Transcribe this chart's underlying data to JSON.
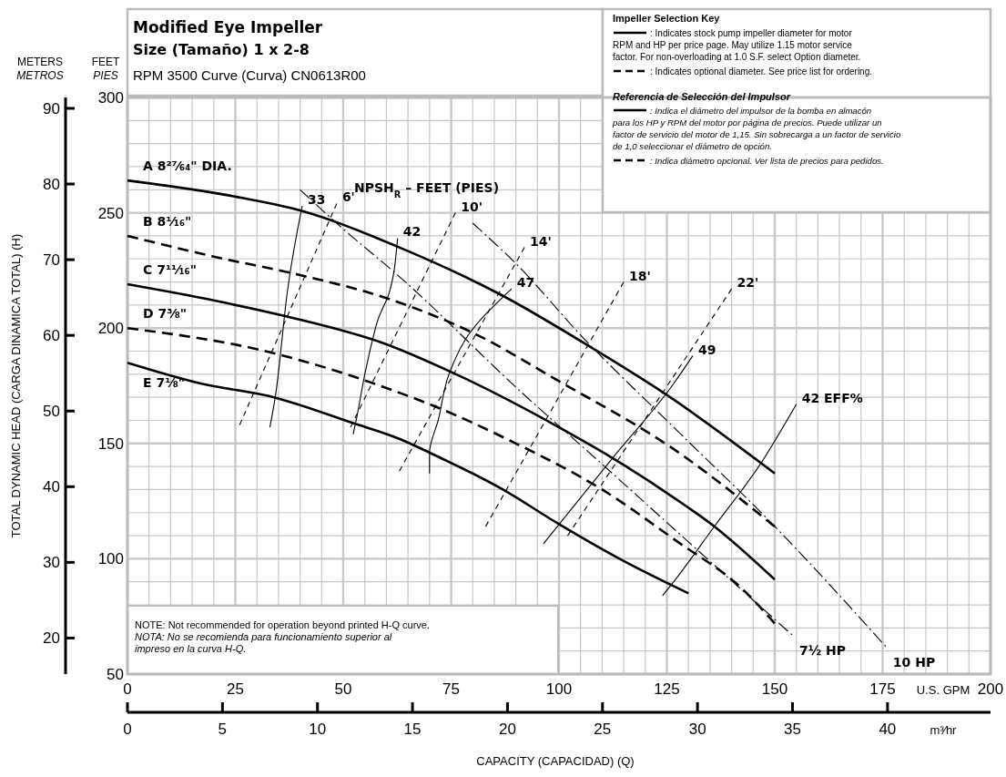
{
  "chart_data": {
    "type": "line",
    "title": "Modified Eye Impeller",
    "subtitle": "Size (Tamaño) 1 x 2-8",
    "xlabel": "CAPACITY (CAPACIDAD) (Q)",
    "y2label": "TOTAL DYNAMIC HEAD (CARGA DINAMICA TOTAL) (H)",
    "x2label": "m³⁄hr",
    "xlim": [
      0,
      200
    ],
    "xticks": [
      0,
      {
        "value": 5,
        "label": null
      },
      {
        "value": 10,
        "label": null
      },
      {
        "value": 15,
        "label": null
      },
      {
        "value": 20,
        "label": null
      },
      25,
      {
        "value": 30,
        "label": null
      },
      {
        "value": 35,
        "label": null
      },
      {
        "value": 40,
        "label": null
      },
      {
        "value": 45,
        "label": null
      },
      50,
      {
        "value": 55,
        "label": null
      },
      {
        "value": 60,
        "label": null
      },
      {
        "value": 65,
        "label": null
      },
      {
        "value": 70,
        "label": null
      },
      75,
      {
        "value": 80,
        "label": null
      },
      {
        "value": 85,
        "label": null
      },
      {
        "value": 90,
        "label": null
      },
      {
        "value": 95,
        "label": null
      },
      100,
      {
        "value": 105,
        "label": null
      },
      {
        "value": 110,
        "label": null
      },
      {
        "value": 115,
        "label": null
      },
      {
        "value": 120,
        "label": null
      },
      125,
      {
        "value": 130,
        "label": null
      },
      {
        "value": 135,
        "label": null
      },
      {
        "value": 140,
        "label": null
      },
      {
        "value": 145,
        "label": null
      },
      150,
      {
        "value": 155,
        "label": null
      },
      {
        "value": 160,
        "label": null
      },
      {
        "value": 165,
        "label": null
      },
      {
        "value": 170,
        "label": null
      },
      175,
      {
        "value": 180,
        "label": null
      },
      {
        "value": 185,
        "label": null
      },
      {
        "value": 190,
        "label": null
      },
      {
        "value": 195,
        "label": null
      },
      200
    ],
    "ylim": [
      50,
      300
    ],
    "yticks": [
      50,
      {
        "value": 60,
        "label": null
      },
      {
        "value": 70,
        "label": null
      },
      {
        "value": 80,
        "label": null
      },
      {
        "value": 90,
        "label": null
      },
      100,
      {
        "value": 110,
        "label": null
      },
      {
        "value": 120,
        "label": null
      },
      {
        "value": 130,
        "label": null
      },
      {
        "value": 140,
        "label": null
      },
      150,
      {
        "value": 160,
        "label": null
      },
      {
        "value": 170,
        "label": null
      },
      {
        "value": 180,
        "label": null
      },
      {
        "value": 190,
        "label": null
      },
      200,
      {
        "value": 210,
        "label": null
      },
      {
        "value": 220,
        "label": null
      },
      {
        "value": 230,
        "label": null
      },
      {
        "value": 240,
        "label": null
      },
      250,
      {
        "value": 260,
        "label": null
      },
      {
        "value": 270,
        "label": null
      },
      {
        "value": 280,
        "label": null
      },
      {
        "value": 290,
        "label": null
      },
      300
    ],
    "x2lim": [
      0,
      45.42
    ],
    "x2ticks": [
      0,
      5,
      10,
      15,
      20,
      25,
      30,
      35,
      40
    ],
    "y2lim": [
      15.24,
      91.44
    ],
    "y2ticks": [
      20,
      30,
      40,
      50,
      60,
      70,
      80,
      90
    ],
    "grid": true,
    "series": [
      {
        "name": "A 8²⁷⁄₆₄\" DIA.",
        "color": "#000000",
        "line_style": "solid",
        "x": [
          0,
          25,
          40,
          63,
          87,
          108,
          125,
          150
        ],
        "values": [
          264,
          257,
          251,
          235,
          214,
          191,
          171,
          137
        ]
      },
      {
        "name": "B 8¹⁄₁₆\"",
        "color": "#000000",
        "line_style": "dashed",
        "x": [
          0,
          20,
          40,
          60,
          80,
          100,
          127,
          150
        ],
        "values": [
          240,
          231,
          223,
          213,
          198,
          177,
          147,
          114
        ]
      },
      {
        "name": "C 7¹¹⁄₁₆\"",
        "color": "#000000",
        "line_style": "solid",
        "x": [
          0,
          20,
          37,
          60,
          75,
          100,
          113,
          127,
          136,
          150
        ],
        "values": [
          219,
          212,
          205,
          193,
          181,
          157,
          143,
          126,
          114,
          91
        ]
      },
      {
        "name": "D 7³⁄₈\"",
        "color": "#000000",
        "line_style": "dashed",
        "x": [
          0,
          32,
          63,
          70,
          90,
          110,
          127,
          143,
          150
        ],
        "values": [
          200,
          190,
          172,
          167,
          150,
          130,
          108,
          86,
          72
        ]
      },
      {
        "name": "E 7¹⁄₈\"",
        "color": "#000000",
        "line_style": "solid",
        "x": [
          0,
          17,
          34,
          52,
          63,
          70,
          87,
          100,
          115,
          130
        ],
        "values": [
          185,
          176,
          170,
          159,
          152,
          146,
          130,
          115,
          99,
          85
        ]
      },
      {
        "name": "33",
        "color": "#000000",
        "line_style": "solid",
        "x": [
          33,
          34.4,
          37,
          40.5
        ],
        "values": [
          157,
          172,
          215,
          253
        ]
      },
      {
        "name": "42",
        "color": "#000000",
        "line_style": "solid",
        "x": [
          52.3,
          53,
          55,
          57.6,
          61.8,
          62.6
        ],
        "values": [
          154,
          160,
          180,
          201,
          225,
          239
        ]
      },
      {
        "name": "47",
        "color": "#000000",
        "line_style": "solid",
        "x": [
          70,
          70,
          72,
          74.5,
          79,
          89
        ],
        "values": [
          137,
          146,
          160,
          180,
          197,
          217
        ]
      },
      {
        "name": "49",
        "color": "#000000",
        "line_style": "solid",
        "x": [
          96.4,
          113,
          126.6,
          131
        ],
        "values": [
          106.5,
          145,
          176,
          188
        ]
      },
      {
        "name": "42  EFF%",
        "color": "#000000",
        "line_style": "solid",
        "x": [
          124,
          127,
          136,
          147,
          155
        ],
        "values": [
          84,
          91,
          114,
          142,
          167
        ]
      },
      {
        "name": "6'",
        "color": "#000000",
        "line_style": "dashed",
        "x": [
          26,
          48.5
        ],
        "values": [
          158,
          254
        ]
      },
      {
        "name": "10'",
        "color": "#000000",
        "line_style": "dashed",
        "x": [
          51.7,
          76
        ],
        "values": [
          157,
          250
        ]
      },
      {
        "name": "14'",
        "color": "#000000",
        "line_style": "dashed",
        "x": [
          63,
          92
        ],
        "values": [
          138,
          235
        ]
      },
      {
        "name": "18'",
        "color": "#000000",
        "line_style": "dashed",
        "x": [
          83,
          115
        ],
        "values": [
          114,
          220
        ]
      },
      {
        "name": "22'",
        "color": "#000000",
        "line_style": "dashed",
        "x": [
          102,
          140
        ],
        "values": [
          110,
          217
        ]
      },
      {
        "name": "7½ HP",
        "color": "#000000",
        "line_style": "dashdot",
        "x": [
          40,
          50.6,
          62,
          91.4,
          110,
          126.6,
          154
        ],
        "values": [
          260,
          242,
          224,
          172,
          141,
          113,
          67
        ]
      },
      {
        "name": "10 HP",
        "color": "#000000",
        "line_style": "dashdot",
        "x": [
          80,
          90,
          105.5,
          126.6,
          150,
          175.7
        ],
        "values": [
          245.5,
          228,
          196,
          157,
          114,
          62
        ]
      }
    ],
    "annotations": [
      "RPM 3500    Curve (Curva) CN0613R00",
      "Impeller Selection Key",
      ": Indicates stock pump impeller diameter for motor",
      "RPM and HP per price page. May utilize 1.15 motor service",
      "factor. For non-overloading at 1.0 S.F. select Option diameter.",
      ": Indicates optional diameter. See price list for ordering.",
      "Referencia de Selección del Impulsor",
      ": Indica el diámetro del impulsor de la bomba en almacón",
      "para los HP y RPM del motor por página de precios. Puede utilizar un",
      "factor de servicio del motor de 1,15. Sin sobrecarga a un factor de servicio",
      "de 1,0 seleccionar el diámetro de opción.",
      ": Indica diámetro opcional. Ver lista de precios para pedidos.",
      "NOTE: Not recommended for operation beyond printed H-Q curve.",
      "NOTA: No se recomienda para funcionamiento superior al",
      "impreso en la curva H-Q.",
      "FEET",
      "PIES",
      "METERS",
      "METROS",
      "U.S. GPM",
      "NPSH$_{R}$ – FEET (PIES)"
    ]
  }
}
